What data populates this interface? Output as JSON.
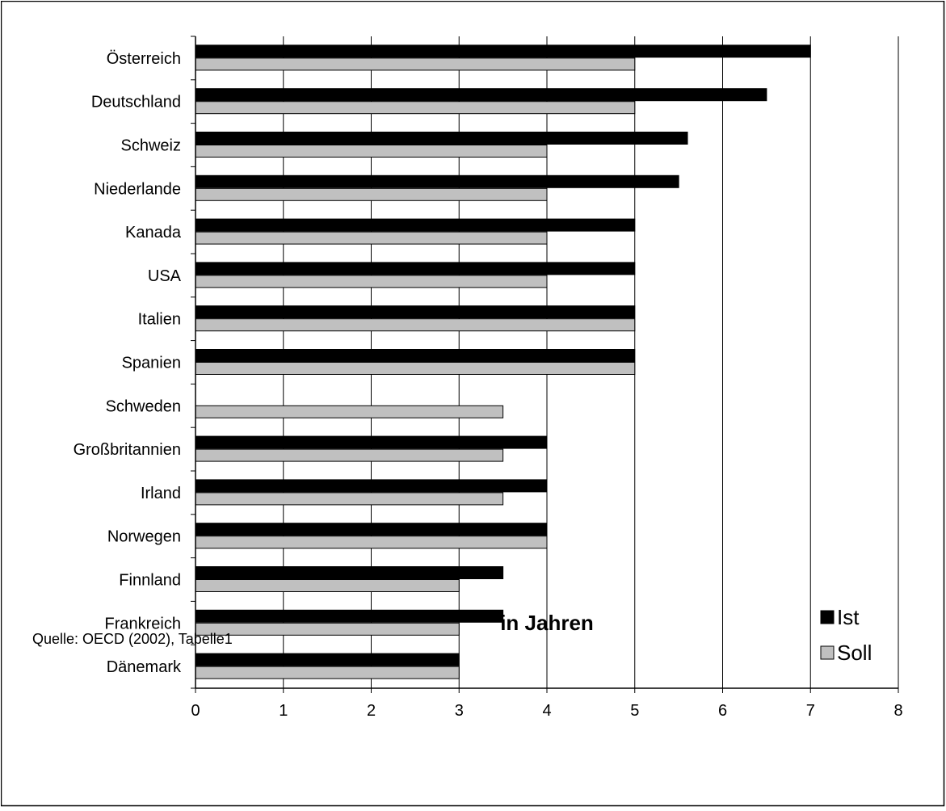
{
  "chart_data": {
    "type": "bar",
    "orientation": "horizontal",
    "categories": [
      "Österreich",
      "Deutschland",
      "Schweiz",
      "Niederlande",
      "Kanada",
      "USA",
      "Italien",
      "Spanien",
      "Schweden",
      "Großbritannien",
      "Irland",
      "Norwegen",
      "Finnland",
      "Frankreich",
      "Dänemark"
    ],
    "series": [
      {
        "name": "Ist",
        "color": "#000000",
        "values": [
          7,
          6.5,
          5.6,
          5.5,
          5,
          5,
          5,
          5,
          null,
          4,
          4,
          4,
          3.5,
          3.5,
          3
        ]
      },
      {
        "name": "Soll",
        "color": "#c0c0c0",
        "values": [
          5,
          5,
          4,
          4,
          4,
          4,
          5,
          5,
          3.5,
          3.5,
          3.5,
          4,
          3,
          3,
          3
        ]
      }
    ],
    "xticks": [
      "0",
      "1",
      "2",
      "3",
      "4",
      "5",
      "6",
      "7",
      "8"
    ],
    "xlim": [
      0,
      8
    ],
    "xlabel": "in Jahren",
    "grid": "vertical",
    "legend_position": "bottom-right",
    "source_note": "Quelle: OECD (2002), Tabelle1"
  }
}
